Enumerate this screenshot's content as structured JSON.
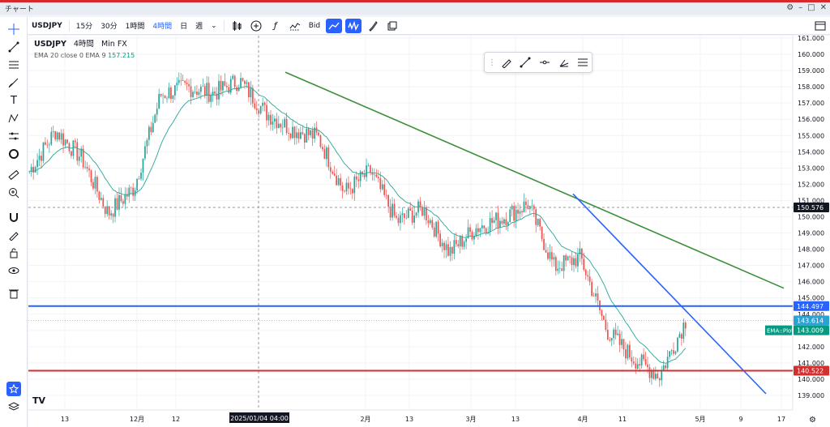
{
  "window": {
    "title": "チャート",
    "gear": "⚙",
    "minimize": "–",
    "maximize": "□",
    "close": "✕"
  },
  "toolbar": {
    "symbol": "USDJPY",
    "intervals": [
      "15分",
      "30分",
      "1時間",
      "4時間",
      "日",
      "週"
    ],
    "active_interval": "4時間",
    "price_type": "Bid"
  },
  "legend": {
    "symbol": "USDJPY",
    "interval": "4時間",
    "source": "Min FX",
    "ema_label": "EMA 20 close 0 EMA 9",
    "ema_value": "157.215"
  },
  "price_axis": {
    "ticks": [
      "161.000",
      "160.000",
      "159.000",
      "158.000",
      "157.000",
      "156.000",
      "155.000",
      "154.000",
      "153.000",
      "152.000",
      "151.000",
      "150.000",
      "149.000",
      "148.000",
      "147.000",
      "146.000",
      "145.000",
      "144.000",
      "143.000",
      "142.000",
      "141.000",
      "140.000",
      "139.000"
    ],
    "labels": {
      "crosshair": "150.576",
      "blue_line": "144.497",
      "last": "143.614",
      "ema_name": "EMA::Plot",
      "ema": "143.009",
      "red_line": "140.522"
    }
  },
  "time_axis": {
    "ticks": [
      "13",
      "12月",
      "12",
      "2月",
      "13",
      "3月",
      "13",
      "4月",
      "11",
      "5月",
      "9",
      "17"
    ],
    "crosshair_label": "2025/01/04  04:00"
  },
  "colors": {
    "up": "#26a69a",
    "down": "#ef5350",
    "ema": "#26a69a",
    "green_trend": "#3b8f3b",
    "blue_trend": "#2962ff",
    "horizontal_blue": "#2962ff",
    "horizontal_red": "#d32f2f",
    "accent": "#2962ff"
  },
  "chart_data": {
    "type": "line",
    "series": [
      {
        "name": "USDJPY",
        "x": [
          "11/13",
          "11/20",
          "11/27",
          "12/4",
          "12/11",
          "12/18",
          "12/25",
          "1/4",
          "1/10",
          "1/17",
          "1/24",
          "1/31",
          "2/7",
          "2/14",
          "2/21",
          "2/28",
          "3/7",
          "3/13",
          "3/20",
          "3/27",
          "4/2",
          "4/7",
          "4/11",
          "4/16",
          "4/21",
          "4/25"
        ],
        "values": [
          152.8,
          155.3,
          153.6,
          150.2,
          151.8,
          157.5,
          158.0,
          157.6,
          158.4,
          156.4,
          155.4,
          154.9,
          151.5,
          152.8,
          149.7,
          150.5,
          147.8,
          149.3,
          149.9,
          150.8,
          146.9,
          147.5,
          143.0,
          141.3,
          140.2,
          143.6
        ]
      }
    ],
    "horizontal_lines": [
      144.497,
      140.522
    ],
    "ylim": [
      138.5,
      161.5
    ]
  }
}
